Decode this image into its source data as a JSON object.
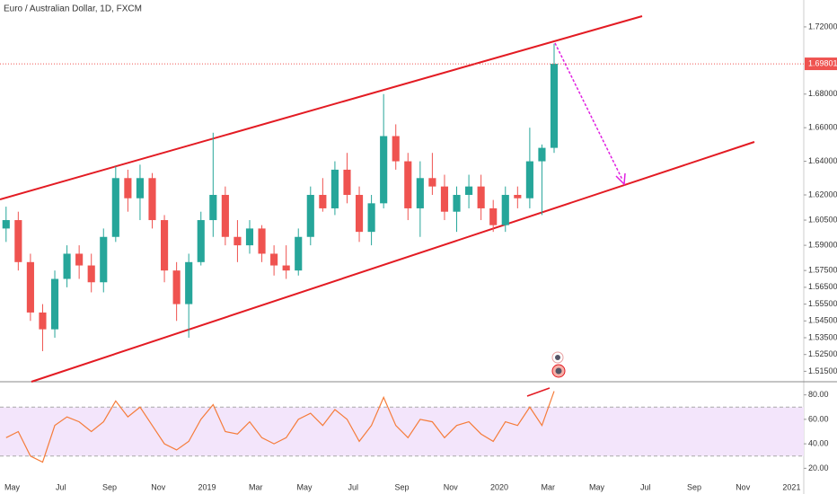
{
  "chart_data": {
    "type": "candlestick",
    "title": "Euro / Australian Dollar, 1D, FXCM",
    "categories": [
      null,
      "May",
      null,
      null,
      null,
      "Jul",
      null,
      null,
      null,
      "Sep",
      null,
      null,
      null,
      "Nov",
      null,
      null,
      null,
      "2019",
      null,
      null,
      null,
      "Mar",
      null,
      null,
      null,
      "May",
      null,
      null,
      null,
      "Jul",
      null,
      null,
      null,
      "Sep",
      null,
      null,
      null,
      "Nov",
      null,
      null,
      null,
      "2020",
      null,
      null,
      null,
      "Mar",
      null,
      null,
      null,
      "May",
      null,
      null,
      null,
      "Jul",
      null,
      null,
      null,
      "Sep",
      null,
      null,
      null,
      "Nov",
      null,
      null,
      null,
      "2021"
    ],
    "open": [
      1.6,
      1.605,
      1.58,
      1.55,
      1.54,
      1.57,
      1.585,
      1.578,
      1.568,
      1.595,
      1.63,
      1.618,
      1.63,
      1.605,
      1.575,
      1.555,
      1.58,
      1.605,
      1.62,
      1.595,
      1.59,
      1.6,
      1.585,
      1.578,
      1.575,
      1.595,
      1.62,
      1.612,
      1.635,
      1.62,
      1.598,
      1.615,
      1.655,
      1.64,
      1.612,
      1.63,
      1.625,
      1.61,
      1.62,
      1.625,
      1.612,
      1.602,
      1.62,
      1.618,
      1.64,
      1.648,
      null,
      null,
      null,
      null,
      null,
      null,
      null,
      null,
      null,
      null,
      null,
      null,
      null,
      null,
      null,
      null,
      null,
      null,
      null,
      null
    ],
    "high": [
      1.613,
      1.61,
      1.585,
      1.555,
      1.575,
      1.59,
      1.59,
      1.585,
      1.6,
      1.637,
      1.635,
      1.638,
      1.633,
      1.608,
      1.58,
      1.585,
      1.61,
      1.657,
      1.625,
      1.605,
      1.605,
      1.602,
      1.59,
      1.59,
      1.6,
      1.625,
      1.63,
      1.64,
      1.645,
      1.625,
      1.62,
      1.68,
      1.662,
      1.645,
      1.64,
      1.645,
      1.632,
      1.625,
      1.632,
      1.632,
      1.617,
      1.625,
      1.625,
      1.66,
      1.65,
      1.71,
      null,
      null,
      null,
      null,
      null,
      null,
      null,
      null,
      null,
      null,
      null,
      null,
      null,
      null,
      null,
      null,
      null,
      null,
      null,
      null
    ],
    "low": [
      1.592,
      1.575,
      1.545,
      1.527,
      1.535,
      1.565,
      1.57,
      1.562,
      1.562,
      1.592,
      1.61,
      1.605,
      1.6,
      1.568,
      1.545,
      1.535,
      1.578,
      1.595,
      1.59,
      1.58,
      1.585,
      1.58,
      1.572,
      1.57,
      1.572,
      1.59,
      1.61,
      1.608,
      1.615,
      1.592,
      1.59,
      1.612,
      1.635,
      1.605,
      1.595,
      1.62,
      1.605,
      1.598,
      1.612,
      1.605,
      1.598,
      1.598,
      1.612,
      1.612,
      1.608,
      1.645,
      null,
      null,
      null,
      null,
      null,
      null,
      null,
      null,
      null,
      null,
      null,
      null,
      null,
      null,
      null,
      null,
      null,
      null,
      null,
      null
    ],
    "close": [
      1.605,
      1.58,
      1.55,
      1.54,
      1.57,
      1.585,
      1.578,
      1.568,
      1.595,
      1.63,
      1.618,
      1.63,
      1.605,
      1.575,
      1.555,
      1.58,
      1.605,
      1.62,
      1.595,
      1.59,
      1.6,
      1.585,
      1.578,
      1.575,
      1.595,
      1.62,
      1.612,
      1.635,
      1.62,
      1.598,
      1.615,
      1.655,
      1.64,
      1.612,
      1.63,
      1.625,
      1.61,
      1.62,
      1.625,
      1.612,
      1.602,
      1.62,
      1.618,
      1.64,
      1.648,
      1.69801,
      null,
      null,
      null,
      null,
      null,
      null,
      null,
      null,
      null,
      null,
      null,
      null,
      null,
      null,
      null,
      null,
      null,
      null,
      null,
      null
    ],
    "up_color": "#26a69a",
    "down_color": "#ef5350",
    "last_price_label": "1.69801",
    "ylim": [
      1.5088,
      1.736
    ],
    "yticks": [
      {
        "value": 1.72,
        "label": "1.72000"
      },
      {
        "value": 1.68,
        "label": "1.68000"
      },
      {
        "value": 1.66,
        "label": "1.66000"
      },
      {
        "value": 1.64,
        "label": "1.64000"
      },
      {
        "value": 1.62,
        "label": "1.62000"
      },
      {
        "value": 1.605,
        "label": "1.60500"
      },
      {
        "value": 1.59,
        "label": "1.59000"
      },
      {
        "value": 1.575,
        "label": "1.57500"
      },
      {
        "value": 1.565,
        "label": "1.56500"
      },
      {
        "value": 1.555,
        "label": "1.55500"
      },
      {
        "value": 1.545,
        "label": "1.54500"
      },
      {
        "value": 1.535,
        "label": "1.53500"
      },
      {
        "value": 1.525,
        "label": "1.52500"
      },
      {
        "value": 1.515,
        "label": "1.51500"
      }
    ],
    "grid": false,
    "indicator": {
      "type": "line",
      "color": "#f57c3a",
      "values": [
        45,
        50,
        30,
        25,
        55,
        62,
        58,
        50,
        58,
        75,
        62,
        70,
        55,
        40,
        35,
        42,
        60,
        72,
        50,
        48,
        58,
        45,
        40,
        45,
        60,
        65,
        55,
        68,
        60,
        42,
        55,
        78,
        55,
        45,
        60,
        58,
        45,
        55,
        58,
        48,
        42,
        58,
        55,
        70,
        55,
        83,
        null,
        null,
        null,
        null,
        null,
        null,
        null,
        null,
        null,
        null,
        null,
        null,
        null,
        null,
        null,
        null,
        null,
        null,
        null,
        null
      ],
      "band": [
        30,
        70
      ],
      "band_color": "#f3e5fb",
      "ylim": [
        10,
        90
      ],
      "yticks": [
        {
          "value": 80,
          "label": "80.00"
        },
        {
          "value": 60,
          "label": "60.00"
        },
        {
          "value": 40,
          "label": "40.00"
        },
        {
          "value": 20,
          "label": "20.00"
        }
      ]
    }
  }
}
